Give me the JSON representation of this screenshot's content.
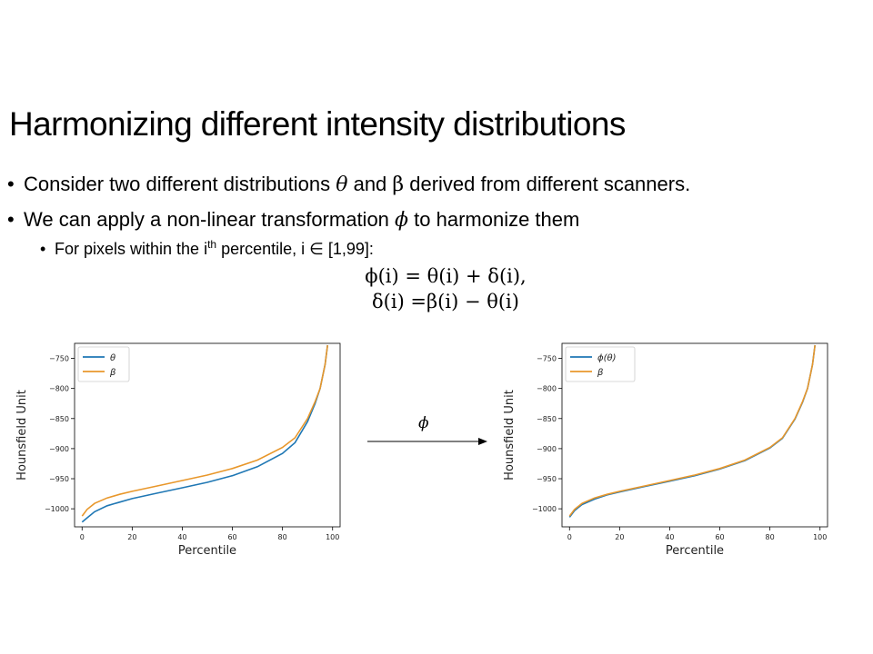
{
  "slide": {
    "title": "Harmonizing different intensity distributions",
    "bullet1": {
      "pre": "Consider two different distributions ",
      "sym1": "θ",
      "mid": " and ",
      "sym2": "β",
      "post": " derived from different scanners."
    },
    "bullet2": {
      "pre": "We can apply a non-linear transformation ",
      "sym": "ϕ",
      "post": " to harmonize them"
    },
    "sub_bullet": {
      "pre": "For pixels within the i",
      "sup": "th",
      "post": " percentile, i ∈ [1,99]:"
    },
    "equation1": "ϕ(i) = θ(i) + δ(i),",
    "equation2": "δ(i) =β(i) − θ(i)",
    "arrow_label": "ϕ"
  },
  "colors": {
    "blue": "#1f77b4",
    "orange": "#e8972b"
  },
  "chart_data": [
    {
      "type": "line",
      "xlabel": "Percentile",
      "ylabel": "Hounsfield Unit",
      "xlim": [
        -3,
        103
      ],
      "ylim": [
        -1030,
        -725
      ],
      "xticks": [
        0,
        20,
        40,
        60,
        80,
        100
      ],
      "xtick_labels": [
        "0",
        "20",
        "40",
        "60",
        "80",
        "100"
      ],
      "yticks": [
        -750,
        -800,
        -850,
        -900,
        -950,
        -1000
      ],
      "ytick_labels": [
        "−750",
        "−800",
        "−850",
        "−900",
        "−950",
        "−1000"
      ],
      "legend_position": "top-left",
      "series": [
        {
          "name": "θ",
          "color": "#1f77b4",
          "x": [
            0,
            2,
            5,
            10,
            15,
            20,
            30,
            40,
            50,
            60,
            70,
            80,
            85,
            90,
            93,
            95,
            97,
            98
          ],
          "y": [
            -1022,
            -1015,
            -1005,
            -995,
            -989,
            -983,
            -974,
            -965,
            -956,
            -945,
            -930,
            -908,
            -890,
            -855,
            -825,
            -800,
            -760,
            -728
          ]
        },
        {
          "name": "β",
          "color": "#e8972b",
          "x": [
            0,
            2,
            5,
            10,
            15,
            20,
            30,
            40,
            50,
            60,
            70,
            80,
            85,
            90,
            93,
            95,
            97,
            98
          ],
          "y": [
            -1012,
            -1001,
            -991,
            -982,
            -976,
            -971,
            -962,
            -953,
            -944,
            -933,
            -919,
            -898,
            -882,
            -850,
            -822,
            -800,
            -760,
            -728
          ]
        }
      ]
    },
    {
      "type": "line",
      "xlabel": "Percentile",
      "ylabel": "Hounsfield Unit",
      "xlim": [
        -3,
        103
      ],
      "ylim": [
        -1030,
        -725
      ],
      "xticks": [
        0,
        20,
        40,
        60,
        80,
        100
      ],
      "xtick_labels": [
        "0",
        "20",
        "40",
        "60",
        "80",
        "100"
      ],
      "yticks": [
        -750,
        -800,
        -850,
        -900,
        -950,
        -1000
      ],
      "ytick_labels": [
        "−750",
        "−800",
        "−850",
        "−900",
        "−950",
        "−1000"
      ],
      "legend_position": "top-left",
      "series": [
        {
          "name": "ϕ(θ)",
          "color": "#1f77b4",
          "x": [
            0,
            2,
            5,
            10,
            15,
            20,
            30,
            40,
            50,
            60,
            70,
            80,
            85,
            90,
            93,
            95,
            97,
            98
          ],
          "y": [
            -1014,
            -1003,
            -993,
            -984,
            -977,
            -972,
            -963,
            -954,
            -945,
            -934,
            -920,
            -899,
            -883,
            -851,
            -823,
            -800,
            -760,
            -728
          ]
        },
        {
          "name": "β",
          "color": "#e8972b",
          "x": [
            0,
            2,
            5,
            10,
            15,
            20,
            30,
            40,
            50,
            60,
            70,
            80,
            85,
            90,
            93,
            95,
            97,
            98
          ],
          "y": [
            -1012,
            -1001,
            -991,
            -982,
            -976,
            -971,
            -962,
            -953,
            -944,
            -933,
            -919,
            -898,
            -882,
            -850,
            -822,
            -800,
            -760,
            -728
          ]
        }
      ]
    }
  ]
}
